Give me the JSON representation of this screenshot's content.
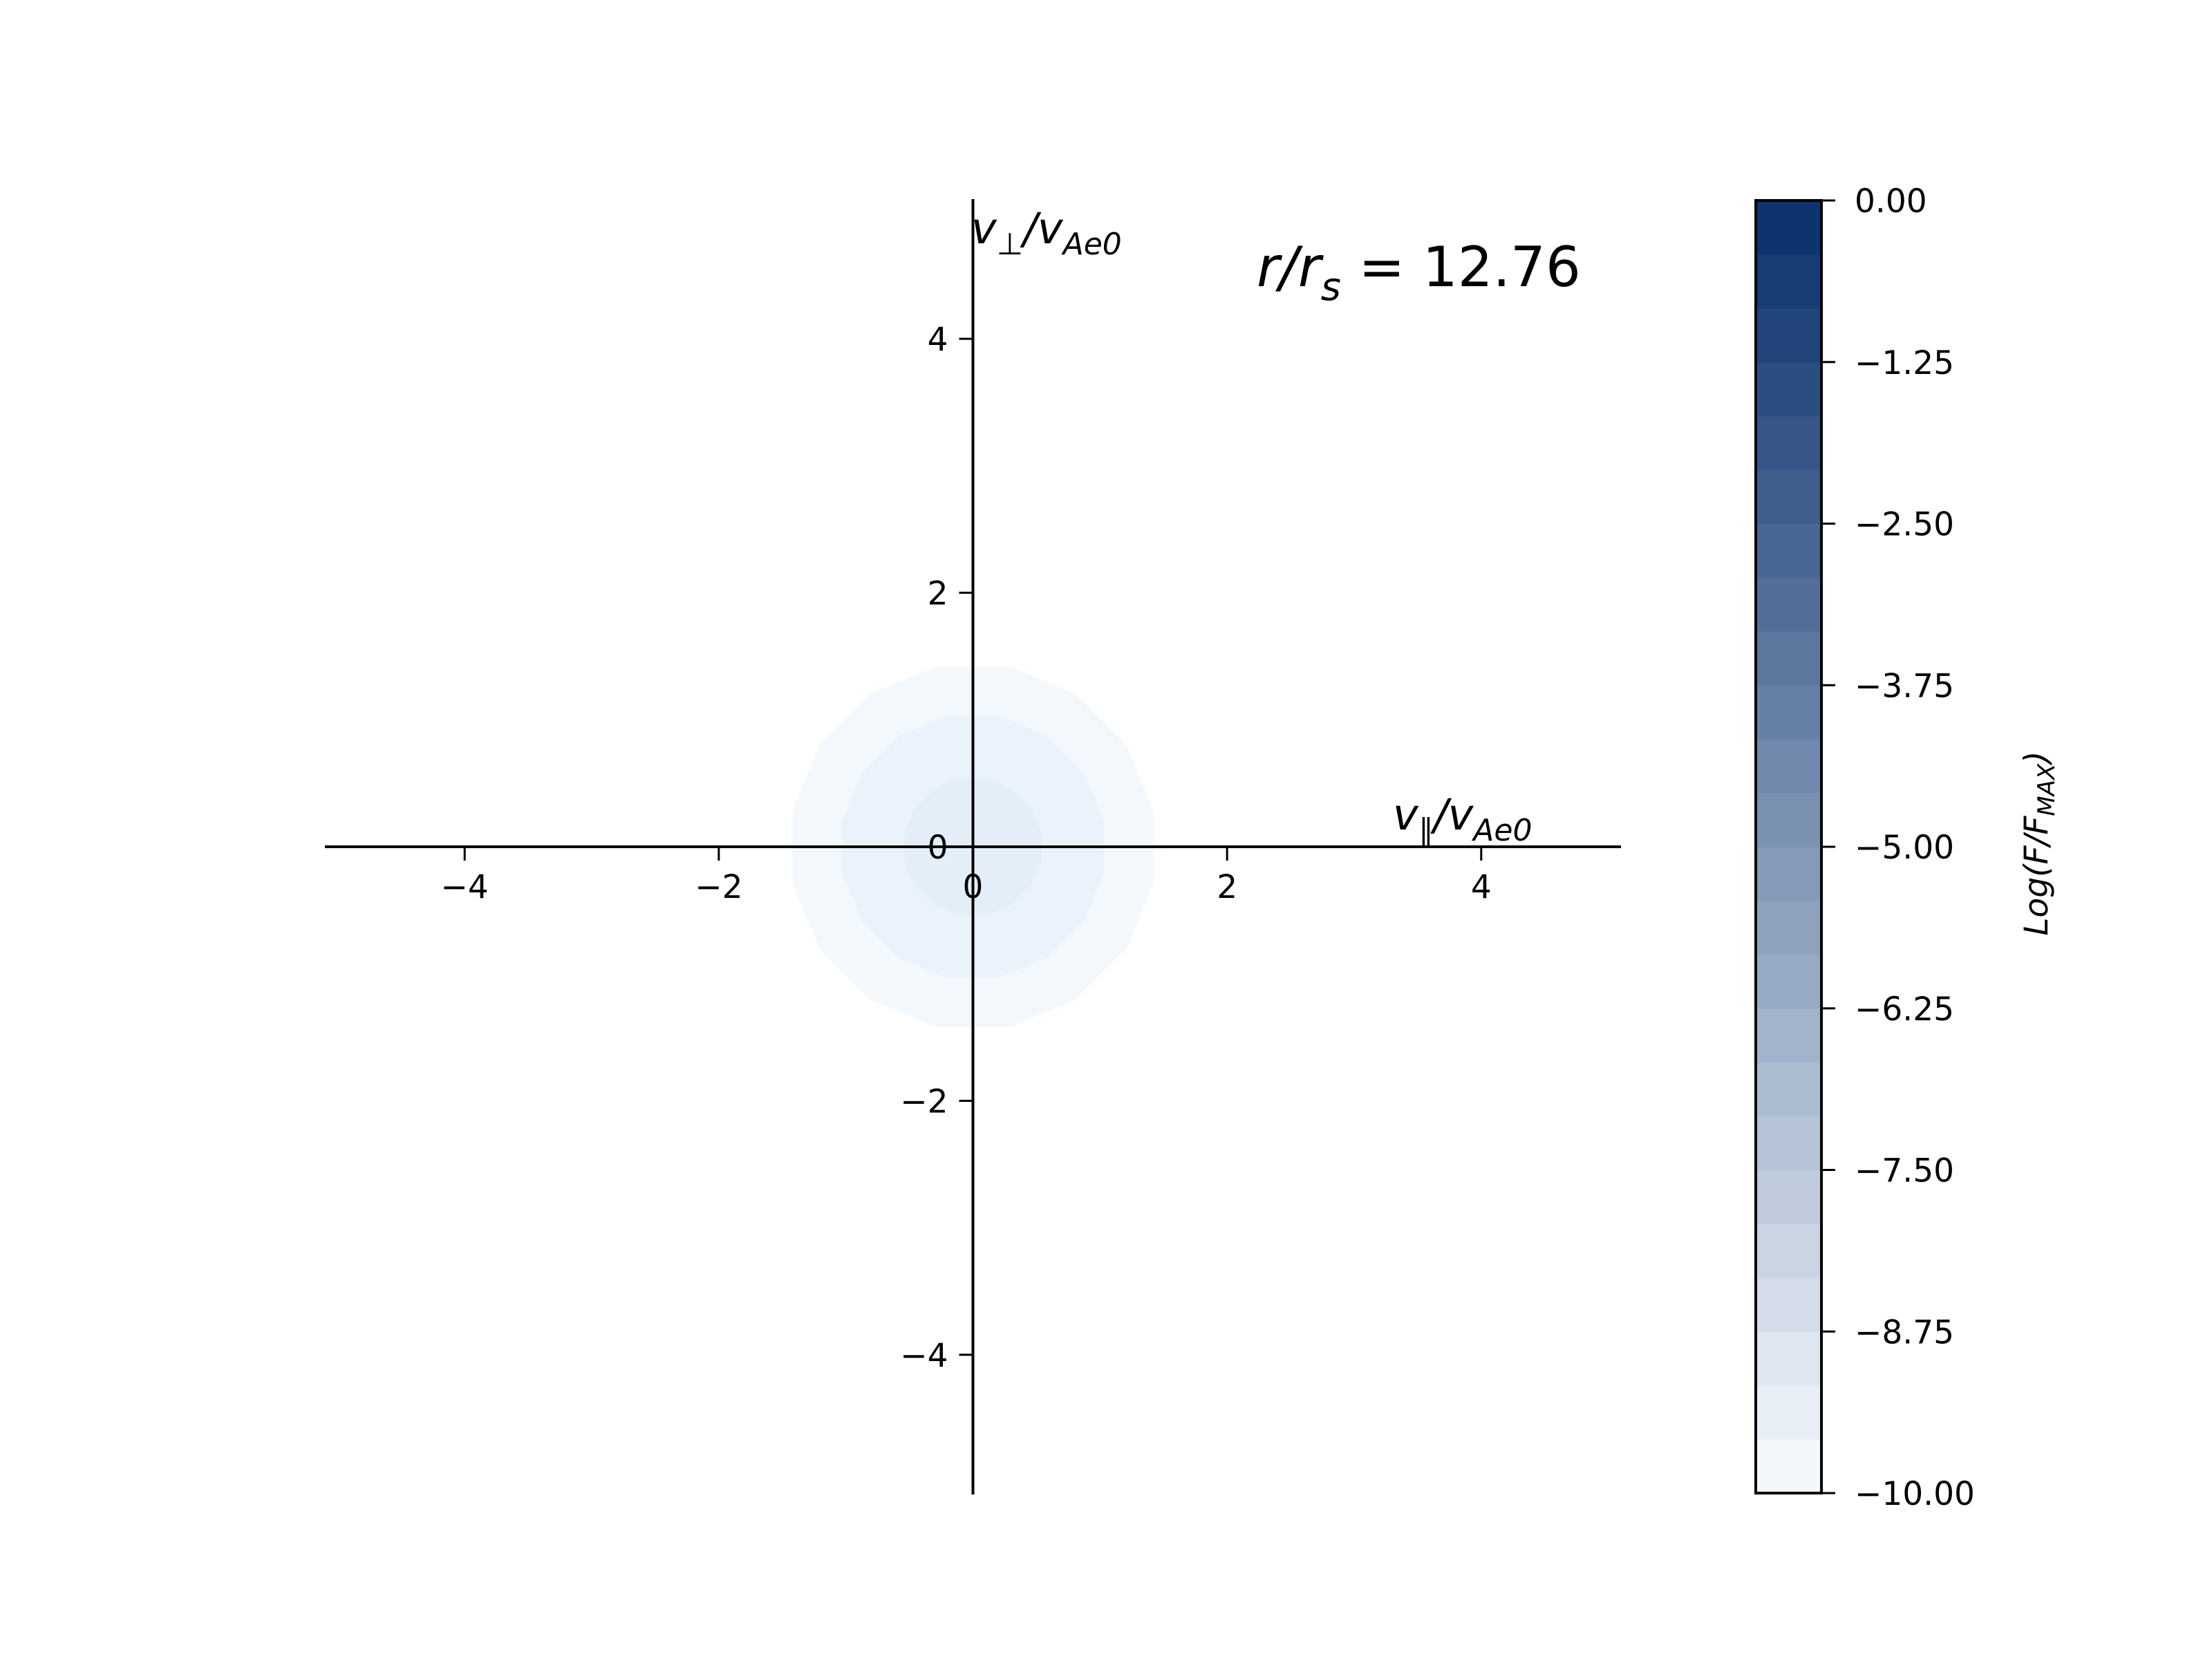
{
  "chart_data": {
    "type": "contour",
    "xlabel": {
      "main": "v",
      "sub": "∥",
      "mid": "/v",
      "sub2": "Ae0"
    },
    "ylabel": {
      "main": "v",
      "sub": "⊥",
      "mid": "/v",
      "sub2": "Ae0"
    },
    "annotation": {
      "main": "r/r",
      "sub": "s",
      "eq": " = 12.76"
    },
    "x_ticks": [
      "−4",
      "−2",
      "0",
      "2",
      "4"
    ],
    "y_ticks": [
      "4",
      "2",
      "0",
      "−2",
      "−4"
    ],
    "x_tick_values": [
      -4,
      -2,
      0,
      2,
      4
    ],
    "y_tick_values": [
      4,
      2,
      0,
      -2,
      -4
    ],
    "xlim": [
      -5.1,
      5.1
    ],
    "ylim": [
      -5.1,
      5.1
    ],
    "colormap": "Blues",
    "colorbar": {
      "label": {
        "main": "Log(F/F",
        "sub": "MAX",
        "end": ")"
      },
      "range": [
        -10.0,
        0.0
      ],
      "levels": 24,
      "tick_values": [
        0.0,
        -1.25,
        -2.5,
        -3.75,
        -5.0,
        -6.25,
        -7.5,
        -8.75,
        -10.0
      ],
      "tick_labels": [
        "0.00",
        "−1.25",
        "−2.50",
        "−3.75",
        "−5.00",
        "−6.25",
        "−7.50",
        "−8.75",
        "−10.00"
      ]
    },
    "contour_regions": [
      {
        "radius": 1.45,
        "color": "#f3f8fd"
      },
      {
        "radius": 1.05,
        "color": "#eaf2fb"
      },
      {
        "radius": 0.55,
        "color": "#e4eef9"
      }
    ]
  }
}
